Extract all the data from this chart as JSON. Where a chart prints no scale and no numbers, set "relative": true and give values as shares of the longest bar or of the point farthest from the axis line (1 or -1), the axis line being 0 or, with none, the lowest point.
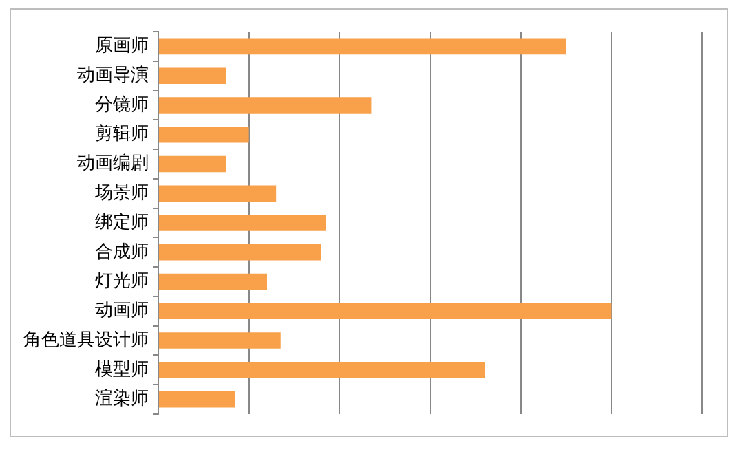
{
  "chart_data": {
    "type": "bar",
    "orientation": "horizontal",
    "relative": true,
    "grid": "x",
    "legend": false,
    "categories": [
      "原画师",
      "动画导演",
      "分镜师",
      "剪辑师",
      "动画编剧",
      "场景师",
      "绑定师",
      "合成师",
      "灯光师",
      "动画师",
      "角色道具设计师",
      "模型师",
      "渲染师"
    ],
    "series": [
      {
        "color": "#f9a04a",
        "values": [
          0.9,
          0.15,
          0.47,
          0.2,
          0.15,
          0.26,
          0.37,
          0.36,
          0.24,
          1,
          0.27,
          0.72,
          0.17
        ]
      }
    ]
  }
}
